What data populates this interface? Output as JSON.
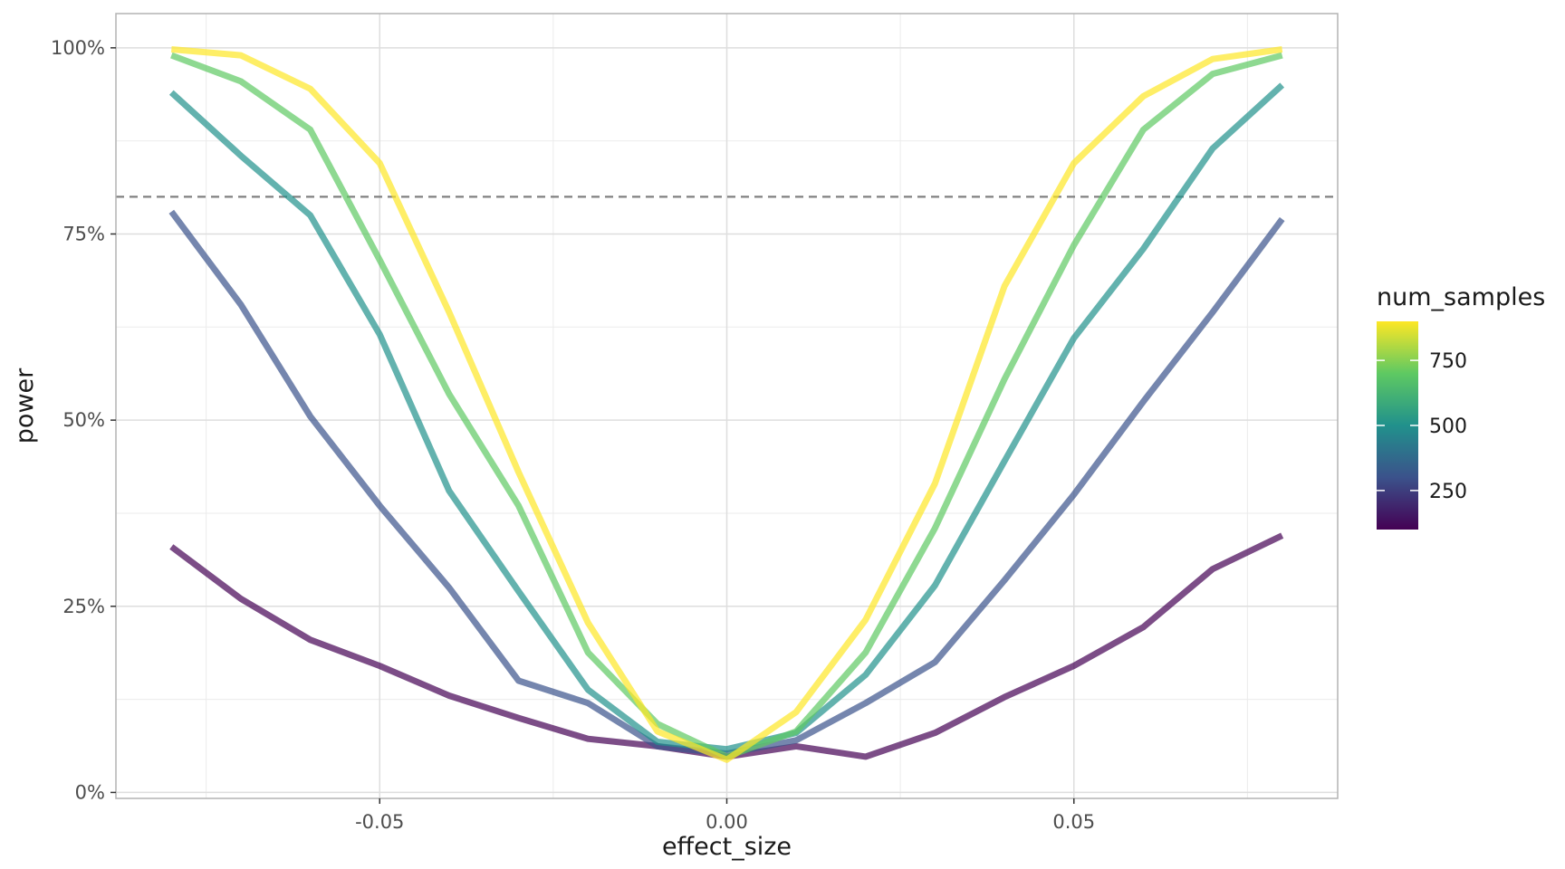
{
  "chart_data": {
    "type": "line",
    "title": "",
    "xlabel": "effect_size",
    "ylabel": "power",
    "xlim": [
      -0.088,
      0.088
    ],
    "ylim": [
      -0.008,
      1.046
    ],
    "x_ticks": [
      -0.05,
      0.0,
      0.05
    ],
    "x_tick_labels": [
      "-0.05",
      "0.00",
      "0.05"
    ],
    "y_ticks": [
      0,
      0.25,
      0.5,
      0.75,
      1.0
    ],
    "y_tick_labels": [
      "0%",
      "25%",
      "50%",
      "75%",
      "100%"
    ],
    "grid": true,
    "reference_line": {
      "y": 0.8,
      "style": "dashed",
      "color": "#808080"
    },
    "x": [
      -0.08,
      -0.07,
      -0.06,
      -0.05,
      -0.04,
      -0.03,
      -0.02,
      -0.01,
      0.0,
      0.01,
      0.02,
      0.03,
      0.04,
      0.05,
      0.06,
      0.07,
      0.08
    ],
    "series": [
      {
        "num_samples": 100,
        "color": "#440154",
        "values": [
          0.33,
          0.26,
          0.205,
          0.17,
          0.13,
          0.1,
          0.072,
          0.062,
          0.048,
          0.062,
          0.048,
          0.08,
          0.128,
          0.17,
          0.222,
          0.3,
          0.345
        ]
      },
      {
        "num_samples": 300,
        "color": "#3b528b",
        "values": [
          0.78,
          0.655,
          0.505,
          0.385,
          0.275,
          0.15,
          0.12,
          0.062,
          0.052,
          0.07,
          0.12,
          0.175,
          0.285,
          0.4,
          0.525,
          0.645,
          0.77
        ]
      },
      {
        "num_samples": 500,
        "color": "#21918c",
        "values": [
          0.94,
          0.855,
          0.775,
          0.615,
          0.405,
          0.27,
          0.138,
          0.068,
          0.058,
          0.08,
          0.158,
          0.278,
          0.445,
          0.61,
          0.73,
          0.865,
          0.95
        ]
      },
      {
        "num_samples": 700,
        "color": "#5ec962",
        "values": [
          0.99,
          0.955,
          0.89,
          0.715,
          0.535,
          0.385,
          0.188,
          0.092,
          0.048,
          0.082,
          0.188,
          0.355,
          0.555,
          0.735,
          0.89,
          0.965,
          0.99
        ]
      },
      {
        "num_samples": 900,
        "color": "#fde725",
        "values": [
          0.998,
          0.99,
          0.945,
          0.845,
          0.645,
          0.43,
          0.228,
          0.082,
          0.044,
          0.108,
          0.232,
          0.415,
          0.68,
          0.845,
          0.935,
          0.985,
          0.998
        ]
      }
    ],
    "line_opacity": 0.7,
    "legend": {
      "title": "num_samples",
      "placement": "right",
      "type": "colorbar",
      "range": [
        100,
        900
      ],
      "ticks": [
        250,
        500,
        750
      ],
      "tick_labels": [
        "250",
        "500",
        "750"
      ],
      "colors": [
        "#440154",
        "#3b528b",
        "#21918c",
        "#5ec962",
        "#fde725"
      ]
    }
  }
}
